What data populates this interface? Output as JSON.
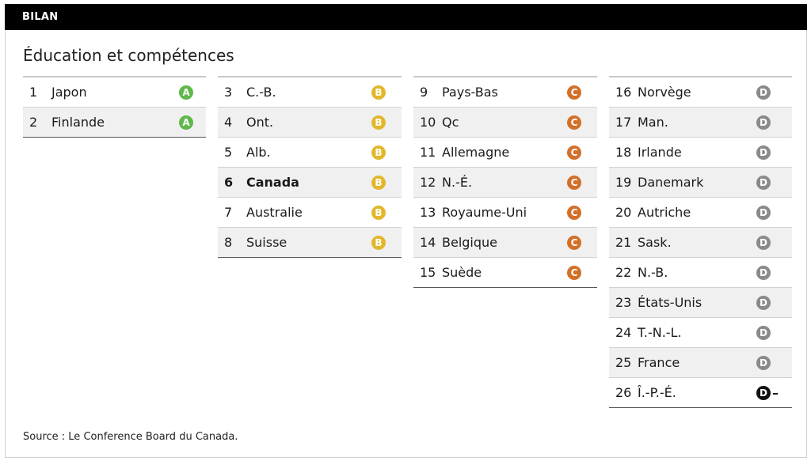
{
  "header": {
    "label": "BILAN"
  },
  "title": "Éducation et compétences",
  "source": "Source : Le Conference Board du Canada.",
  "colors": {
    "A": "#5fb84a",
    "B": "#e3b72b",
    "C": "#d2702a",
    "D": "#8a8a8a"
  },
  "columns": [
    [
      {
        "rank": "1",
        "name": "Japon",
        "grade": "A"
      },
      {
        "rank": "2",
        "name": "Finlande",
        "grade": "A"
      }
    ],
    [
      {
        "rank": "3",
        "name": "C.-B.",
        "grade": "B"
      },
      {
        "rank": "4",
        "name": "Ont.",
        "grade": "B"
      },
      {
        "rank": "5",
        "name": "Alb.",
        "grade": "B"
      },
      {
        "rank": "6",
        "name": "Canada",
        "grade": "B",
        "bold": true
      },
      {
        "rank": "7",
        "name": "Australie",
        "grade": "B"
      },
      {
        "rank": "8",
        "name": "Suisse",
        "grade": "B"
      }
    ],
    [
      {
        "rank": "9",
        "name": "Pays-Bas",
        "grade": "C"
      },
      {
        "rank": "10",
        "name": "Qc",
        "grade": "C"
      },
      {
        "rank": "11",
        "name": "Allemagne",
        "grade": "C"
      },
      {
        "rank": "12",
        "name": "N.-É.",
        "grade": "C"
      },
      {
        "rank": "13",
        "name": "Royaume-Uni",
        "grade": "C"
      },
      {
        "rank": "14",
        "name": "Belgique",
        "grade": "C"
      },
      {
        "rank": "15",
        "name": "Suède",
        "grade": "C"
      }
    ],
    [
      {
        "rank": "16",
        "name": "Norvège",
        "grade": "D"
      },
      {
        "rank": "17",
        "name": "Man.",
        "grade": "D"
      },
      {
        "rank": "18",
        "name": "Irlande",
        "grade": "D"
      },
      {
        "rank": "19",
        "name": "Danemark",
        "grade": "D"
      },
      {
        "rank": "20",
        "name": "Autriche",
        "grade": "D"
      },
      {
        "rank": "21",
        "name": "Sask.",
        "grade": "D"
      },
      {
        "rank": "22",
        "name": "N.-B.",
        "grade": "D"
      },
      {
        "rank": "23",
        "name": "États-Unis",
        "grade": "D"
      },
      {
        "rank": "24",
        "name": "T.-N.-L.",
        "grade": "D"
      },
      {
        "rank": "25",
        "name": "France",
        "grade": "D"
      },
      {
        "rank": "26",
        "name": "Î.-P.-É.",
        "grade": "D",
        "suffix": "–"
      }
    ]
  ]
}
